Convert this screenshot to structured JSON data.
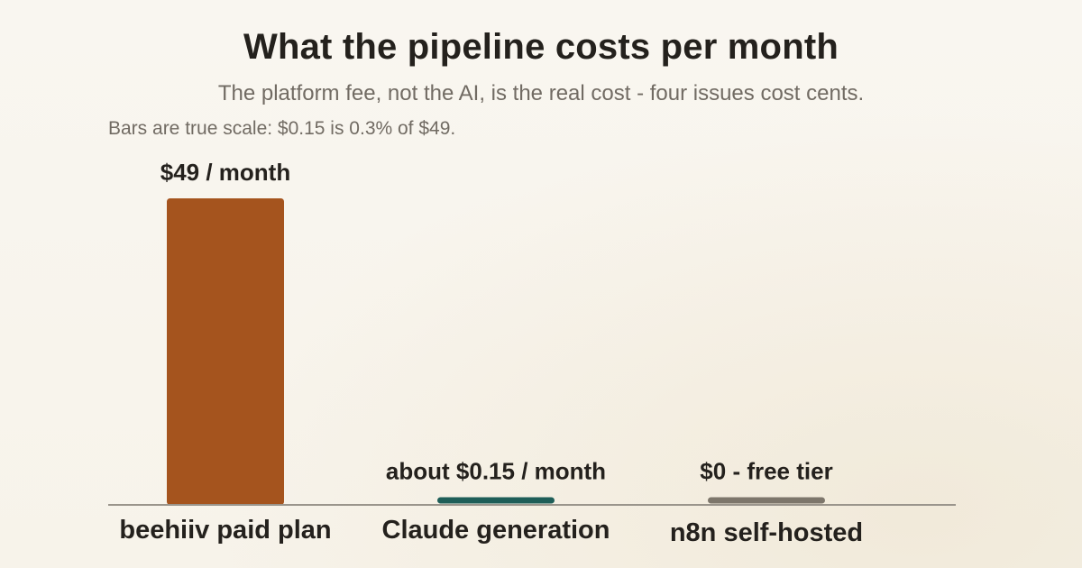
{
  "colors": {
    "background": "#f8f5ee",
    "text": "#24211d",
    "muted": "#716b63",
    "axis": "#9a958c"
  },
  "chart_data": {
    "type": "bar",
    "title": "What the pipeline costs per month",
    "subtitle": "The platform fee, not the AI, is the real cost - four issues cost cents.",
    "note": "Bars are true scale: $0.15 is 0.3% of $49.",
    "categories": [
      "beehiiv paid plan",
      "Claude generation",
      "n8n self-hosted"
    ],
    "values": [
      49,
      0.15,
      0
    ],
    "data_labels": [
      "$49 / month",
      "about $0.15 / month",
      "$0 - free tier"
    ],
    "bar_colors": [
      "#a5541e",
      "#1e5e58",
      "#7d766b"
    ],
    "unit": "USD per month",
    "ylim": [
      0,
      49
    ],
    "grid": false,
    "legend": "none",
    "xlabel": "",
    "ylabel": ""
  }
}
